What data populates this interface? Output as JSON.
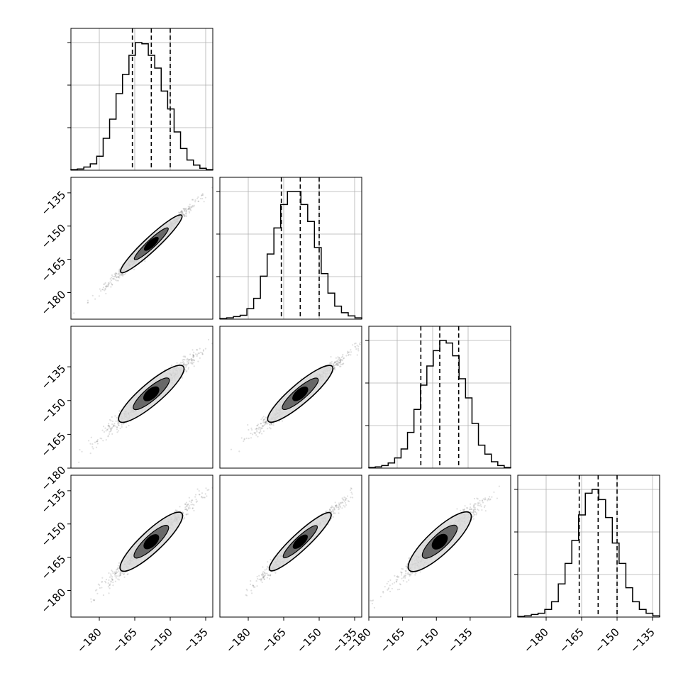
{
  "chart_data": {
    "type": "corner",
    "n_params": 4,
    "colors": {
      "line": "#000000",
      "grid": "#b0b0b0",
      "frame": "#000000"
    },
    "grid": true,
    "histograms": [
      {
        "param": 0,
        "range": [
          -192,
          -132
        ],
        "bin_counts": [
          0.5,
          1,
          2.5,
          5,
          11,
          25,
          40,
          60,
          75,
          90,
          100,
          99,
          90,
          80,
          62,
          48,
          30,
          17,
          8,
          4,
          1.5,
          0.5
        ],
        "quantiles": [
          -166,
          -158,
          -150
        ]
      },
      {
        "param": 1,
        "range": [
          -192,
          -132
        ],
        "bin_counts": [
          0.5,
          1,
          2,
          3,
          8,
          16,
          33,
          50,
          70,
          88,
          98,
          98,
          88,
          75,
          55,
          35,
          20,
          10,
          5,
          2.5,
          1
        ],
        "quantiles": [
          -166,
          -158,
          -150
        ]
      },
      {
        "param": 2,
        "range": [
          -177,
          -117
        ],
        "bin_counts": [
          0.5,
          1,
          2,
          4,
          8,
          15,
          28,
          46,
          65,
          80,
          92,
          100,
          98,
          88,
          70,
          55,
          35,
          18,
          11,
          5,
          2,
          0.5
        ],
        "quantiles": [
          -155,
          -147,
          -139
        ]
      },
      {
        "param": 3,
        "range": [
          -192,
          -132
        ],
        "bin_counts": [
          0.5,
          1,
          2,
          3,
          6,
          12,
          26,
          42,
          60,
          80,
          97,
          100,
          92,
          78,
          58,
          42,
          23,
          12,
          6,
          3,
          1
        ],
        "quantiles": [
          -166,
          -158,
          -150
        ]
      }
    ],
    "scatter_panels": [
      {
        "row": 1,
        "col": 0,
        "x_range": [
          -192,
          -132
        ],
        "y_range": [
          -192,
          -128
        ],
        "center": [
          -158,
          -158
        ],
        "slope": 1.0,
        "sigma_major": 13,
        "sigma_minor": 0.9
      },
      {
        "row": 2,
        "col": 0,
        "x_range": [
          -192,
          -132
        ],
        "y_range": [
          -180,
          -117
        ],
        "center": [
          -158,
          -147
        ],
        "slope": 0.9,
        "sigma_major": 13,
        "sigma_minor": 1.4
      },
      {
        "row": 2,
        "col": 1,
        "x_range": [
          -192,
          -132
        ],
        "y_range": [
          -180,
          -117
        ],
        "center": [
          -158,
          -147
        ],
        "slope": 0.9,
        "sigma_major": 13,
        "sigma_minor": 1.3
      },
      {
        "row": 3,
        "col": 0,
        "x_range": [
          -192,
          -132
        ],
        "y_range": [
          -192,
          -128
        ],
        "center": [
          -158,
          -158
        ],
        "slope": 1.0,
        "sigma_major": 13,
        "sigma_minor": 1.4
      },
      {
        "row": 3,
        "col": 1,
        "x_range": [
          -192,
          -132
        ],
        "y_range": [
          -192,
          -128
        ],
        "center": [
          -158,
          -158
        ],
        "slope": 1.0,
        "sigma_major": 13,
        "sigma_minor": 1.1
      },
      {
        "row": 3,
        "col": 2,
        "x_range": [
          -177,
          -117
        ],
        "y_range": [
          -192,
          -128
        ],
        "center": [
          -147,
          -158
        ],
        "slope": 1.0,
        "sigma_major": 13,
        "sigma_minor": 1.6
      }
    ],
    "y_tick_labels": {
      "row1": [
        "−135",
        "−150",
        "−165",
        "−180"
      ],
      "row2": [
        "−135",
        "−150",
        "−165",
        "−180"
      ],
      "row3": [
        "−135",
        "−150",
        "−165",
        "−180"
      ]
    },
    "y_tick_values": {
      "row1": [
        -135,
        -150,
        -165,
        -180
      ],
      "row2": [
        -135,
        -150,
        -165,
        -180
      ],
      "row3": [
        -135,
        -150,
        -165,
        -180
      ]
    },
    "x_tick_labels": {
      "col0": [
        "−180",
        "−165",
        "−150",
        "−135"
      ],
      "col1": [
        "−180",
        "−165",
        "−150",
        "−135"
      ],
      "col2": [
        "−180",
        "−165",
        "−150",
        "−135"
      ],
      "col3": [
        "−180",
        "−165",
        "−150",
        "−135"
      ]
    },
    "x_tick_values": {
      "col0": [
        -180,
        -165,
        -150,
        -135
      ],
      "col1": [
        -180,
        -165,
        -150,
        -135
      ],
      "col2": [
        -180,
        -165,
        -150,
        -135
      ],
      "col3": [
        -180,
        -165,
        -150,
        -135
      ]
    },
    "x_ranges": {
      "col0": [
        -192,
        -132
      ],
      "col1": [
        -192,
        -132
      ],
      "col2": [
        -180,
        -117
      ],
      "col3": [
        -192,
        -132
      ]
    }
  }
}
